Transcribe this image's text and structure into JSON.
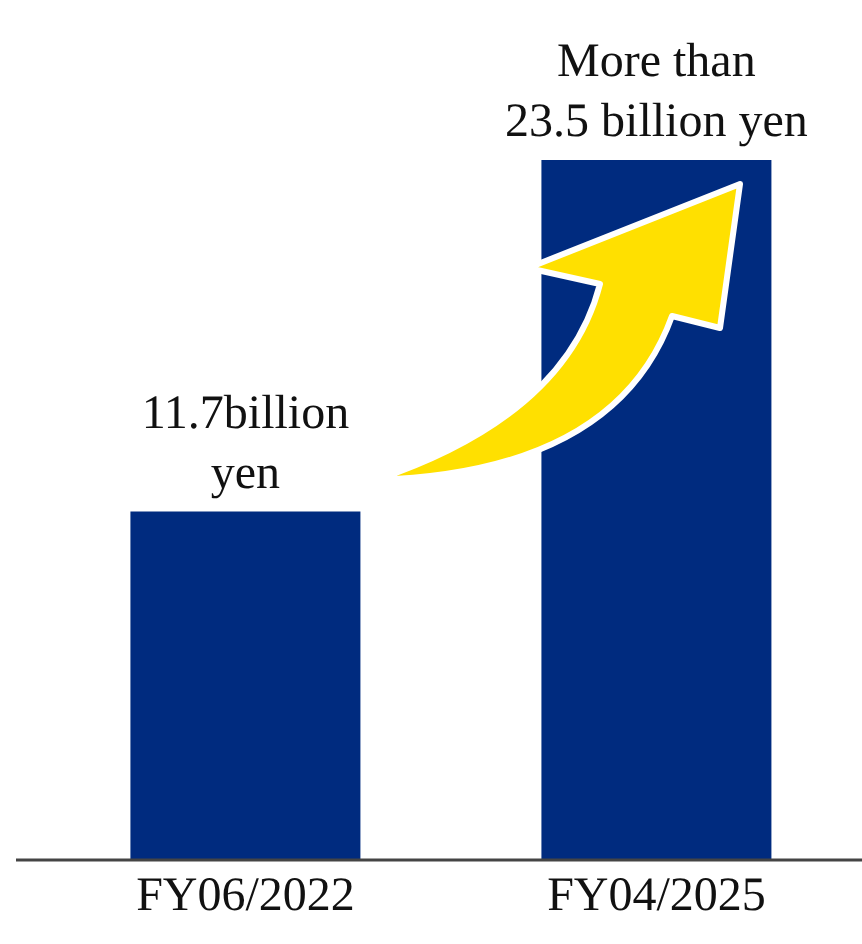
{
  "chart_data": {
    "type": "bar",
    "categories": [
      "FY06/2022",
      "FY04/2025"
    ],
    "values": [
      11.7,
      23.5
    ],
    "color": "#002b7f",
    "value_labels": [
      "11.7billion yen",
      "More than 23.5 billion yen"
    ],
    "tick_labels": "x"
  }
}
